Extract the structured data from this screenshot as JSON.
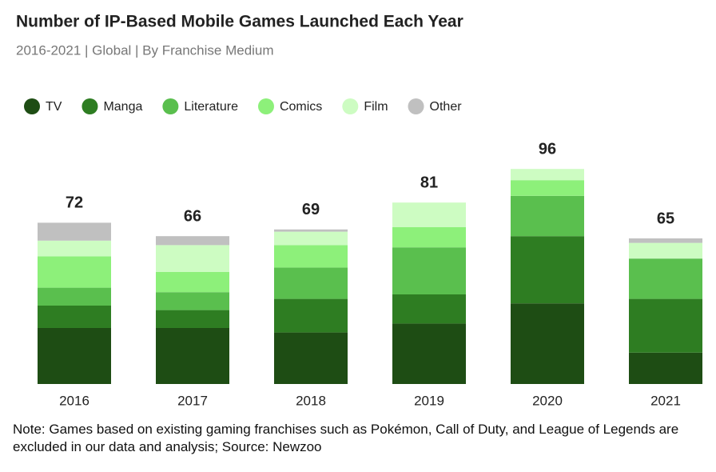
{
  "chart_data": {
    "type": "stacked_bar",
    "title": "Number of IP-Based Mobile Games Launched Each Year",
    "subtitle": "2016-2021 | Global | By Franchise Medium",
    "note": "Note: Games based on existing gaming franchises such as Pokémon, Call of Duty, and League of Legends are excluded in our data and analysis; Source: Newzoo",
    "categories": [
      "2016",
      "2017",
      "2018",
      "2019",
      "2020",
      "2021"
    ],
    "series": [
      {
        "name": "TV",
        "color": "#1e4d14",
        "values": [
          25,
          25,
          23,
          27,
          36,
          14
        ]
      },
      {
        "name": "Manga",
        "color": "#2e7d22",
        "values": [
          10,
          8,
          15,
          13,
          30,
          24
        ]
      },
      {
        "name": "Literature",
        "color": "#5abf4e",
        "values": [
          8,
          8,
          14,
          21,
          18,
          18
        ]
      },
      {
        "name": "Comics",
        "color": "#8df07a",
        "values": [
          14,
          9,
          10,
          9,
          7,
          0
        ]
      },
      {
        "name": "Film",
        "color": "#cdfcc2",
        "values": [
          7,
          12,
          6,
          11,
          5,
          7
        ]
      },
      {
        "name": "Other",
        "color": "#c0c0c0",
        "values": [
          8,
          4,
          1,
          0,
          0,
          2
        ]
      }
    ],
    "totals": [
      72,
      66,
      69,
      81,
      96,
      65
    ],
    "ylim": [
      0,
      100
    ]
  }
}
